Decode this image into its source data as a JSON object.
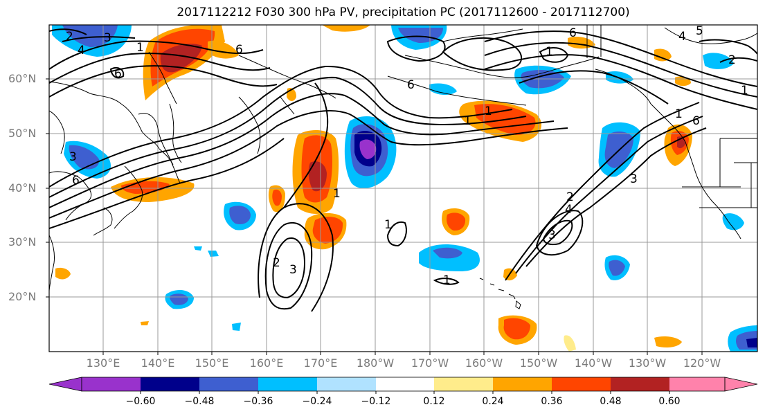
{
  "title": "2017112212 F030 300 hPa PV, precipitation PC (2017112600 - 2017112700)",
  "map": {
    "lat_labels": [
      "60°N",
      "50°N",
      "40°N",
      "30°N",
      "20°N"
    ],
    "lon_labels": [
      "130°E",
      "140°E",
      "150°E",
      "160°E",
      "170°E",
      "180°W",
      "170°W",
      "160°W",
      "150°W",
      "140°W",
      "130°W",
      "120°W"
    ],
    "contour_labels": [
      "2",
      "3",
      "4",
      "1",
      "6",
      "6",
      "6",
      "6",
      "6",
      "1",
      "4",
      "2",
      "1",
      "1",
      "2",
      "3",
      "1",
      "1",
      "1",
      "2",
      "3",
      "4",
      "6",
      "3",
      "1",
      "1",
      "3",
      "5"
    ],
    "contour_color": "#000000",
    "coastline_color": "#000000",
    "grid_color": "#999999"
  },
  "colorbar": {
    "tick_labels": [
      "−0.60",
      "−0.48",
      "−0.36",
      "−0.24",
      "−0.12",
      "0.12",
      "0.24",
      "0.36",
      "0.48",
      "0.60"
    ],
    "colors": [
      "#9932cc",
      "#00008b",
      "#3e5fd0",
      "#00bfff",
      "#b0e2ff",
      "#ffffff",
      "#ffec8b",
      "#ffa500",
      "#ff4500",
      "#b22222",
      "#ff82ab"
    ]
  }
}
